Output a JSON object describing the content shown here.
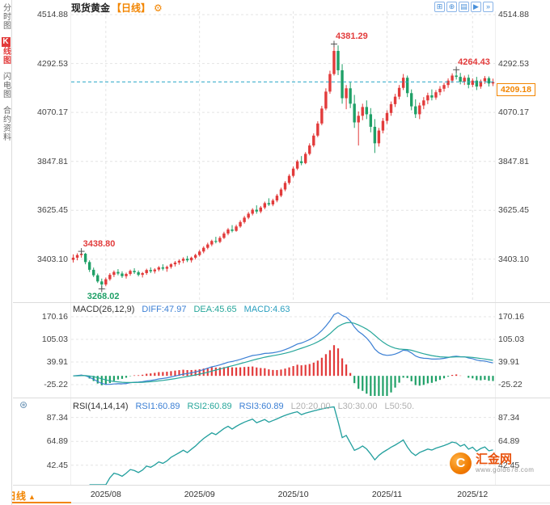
{
  "header": {
    "title": "现货黄金",
    "period_tag": "【日线】",
    "settings_icon": "⚙"
  },
  "toolbar": {
    "icons": [
      {
        "name": "pan-icon",
        "glyph": "⊞"
      },
      {
        "name": "zoom-icon",
        "glyph": "⊕"
      },
      {
        "name": "chart-style-icon",
        "glyph": "▤"
      },
      {
        "name": "play-icon",
        "glyph": "▶"
      },
      {
        "name": "fast-forward-icon",
        "glyph": "»"
      }
    ]
  },
  "sidebar": {
    "tabs": [
      {
        "id": "time-chart",
        "label": "分时图",
        "active": false
      },
      {
        "id": "kline-chart",
        "label": "K线图",
        "active": true
      },
      {
        "id": "lightning-chart",
        "label": "闪电图",
        "active": false
      },
      {
        "id": "contract-info",
        "label": "合约资料",
        "active": false
      }
    ]
  },
  "icons": {
    "indicator_settings": "⊛"
  },
  "bottom": {
    "period_label": "日线",
    "period_caret": "▲"
  },
  "watermark": {
    "brand": "汇金网",
    "url": "www.gold678.com",
    "logo_glyph": "C"
  },
  "colors": {
    "up": "#e23b3b",
    "down": "#1fa067",
    "accent_orange": "#f28500",
    "grid": "#e4e4e4",
    "axis_text": "#444444",
    "current_line": "#2aa8c8"
  },
  "chart_data": {
    "type": "candlestick",
    "title": "现货黄金 日线",
    "y_ticks": [
      4514.88,
      4292.53,
      4070.17,
      3847.81,
      3625.45,
      3403.1
    ],
    "y_range": {
      "min": 3215,
      "max": 4530
    },
    "x_ticks": [
      {
        "label": "2025/08",
        "index": 8
      },
      {
        "label": "2025/09",
        "index": 31
      },
      {
        "label": "2025/10",
        "index": 54
      },
      {
        "label": "2025/11",
        "index": 77
      },
      {
        "label": "2025/12",
        "index": 98
      }
    ],
    "current_price": 4209.18,
    "annotations": [
      {
        "index": 2,
        "price": 3438.8,
        "label": "3438.80",
        "type": "high"
      },
      {
        "index": 7,
        "price": 3268.02,
        "label": "3268.02",
        "type": "low"
      },
      {
        "index": 64,
        "price": 4381.29,
        "label": "4381.29",
        "type": "high"
      },
      {
        "index": 94,
        "price": 4264.43,
        "label": "4264.43",
        "type": "high"
      }
    ],
    "candles": [
      [
        3400,
        3425,
        3388,
        3410
      ],
      [
        3410,
        3430,
        3398,
        3422
      ],
      [
        3422,
        3438.8,
        3410,
        3428
      ],
      [
        3428,
        3432,
        3380,
        3390
      ],
      [
        3390,
        3398,
        3345,
        3355
      ],
      [
        3355,
        3365,
        3322,
        3330
      ],
      [
        3330,
        3338,
        3295,
        3302
      ],
      [
        3302,
        3315,
        3268.02,
        3288
      ],
      [
        3288,
        3320,
        3280,
        3312
      ],
      [
        3312,
        3340,
        3305,
        3332
      ],
      [
        3332,
        3352,
        3322,
        3345
      ],
      [
        3345,
        3358,
        3330,
        3338
      ],
      [
        3338,
        3348,
        3318,
        3326
      ],
      [
        3326,
        3342,
        3315,
        3336
      ],
      [
        3336,
        3356,
        3328,
        3350
      ],
      [
        3350,
        3362,
        3336,
        3344
      ],
      [
        3344,
        3352,
        3325,
        3332
      ],
      [
        3332,
        3345,
        3320,
        3340
      ],
      [
        3340,
        3360,
        3332,
        3354
      ],
      [
        3354,
        3366,
        3340,
        3348
      ],
      [
        3348,
        3362,
        3338,
        3356
      ],
      [
        3356,
        3372,
        3348,
        3366
      ],
      [
        3366,
        3380,
        3352,
        3360
      ],
      [
        3360,
        3374,
        3346,
        3368
      ],
      [
        3368,
        3385,
        3360,
        3380
      ],
      [
        3380,
        3395,
        3370,
        3388
      ],
      [
        3388,
        3402,
        3378,
        3396
      ],
      [
        3396,
        3412,
        3385,
        3405
      ],
      [
        3405,
        3418,
        3390,
        3398
      ],
      [
        3398,
        3415,
        3388,
        3410
      ],
      [
        3410,
        3428,
        3402,
        3422
      ],
      [
        3422,
        3445,
        3415,
        3438
      ],
      [
        3438,
        3462,
        3430,
        3455
      ],
      [
        3455,
        3478,
        3448,
        3470
      ],
      [
        3470,
        3492,
        3462,
        3486
      ],
      [
        3486,
        3505,
        3475,
        3482
      ],
      [
        3482,
        3508,
        3476,
        3500
      ],
      [
        3500,
        3528,
        3495,
        3520
      ],
      [
        3520,
        3545,
        3512,
        3538
      ],
      [
        3538,
        3558,
        3525,
        3532
      ],
      [
        3532,
        3560,
        3528,
        3552
      ],
      [
        3552,
        3580,
        3546,
        3572
      ],
      [
        3572,
        3600,
        3565,
        3592
      ],
      [
        3592,
        3618,
        3585,
        3610
      ],
      [
        3610,
        3635,
        3602,
        3628
      ],
      [
        3628,
        3648,
        3610,
        3620
      ],
      [
        3620,
        3645,
        3612,
        3638
      ],
      [
        3638,
        3665,
        3630,
        3658
      ],
      [
        3658,
        3680,
        3645,
        3652
      ],
      [
        3652,
        3678,
        3644,
        3670
      ],
      [
        3670,
        3700,
        3662,
        3692
      ],
      [
        3692,
        3728,
        3685,
        3720
      ],
      [
        3720,
        3758,
        3712,
        3750
      ],
      [
        3750,
        3790,
        3742,
        3782
      ],
      [
        3782,
        3825,
        3775,
        3815
      ],
      [
        3815,
        3855,
        3808,
        3848
      ],
      [
        3848,
        3872,
        3830,
        3840
      ],
      [
        3840,
        3890,
        3835,
        3882
      ],
      [
        3882,
        3930,
        3875,
        3920
      ],
      [
        3920,
        3975,
        3912,
        3965
      ],
      [
        3965,
        4030,
        3958,
        4020
      ],
      [
        4020,
        4100,
        4012,
        4088
      ],
      [
        4088,
        4180,
        4080,
        4165
      ],
      [
        4165,
        4260,
        4155,
        4245
      ],
      [
        4245,
        4381.29,
        4238,
        4350
      ],
      [
        4350,
        4375,
        4240,
        4262
      ],
      [
        4262,
        4290,
        4110,
        4135
      ],
      [
        4135,
        4195,
        4085,
        4180
      ],
      [
        4180,
        4210,
        4090,
        4110
      ],
      [
        4110,
        4150,
        4000,
        4025
      ],
      [
        4025,
        4075,
        3920,
        4055
      ],
      [
        4055,
        4110,
        4035,
        4095
      ],
      [
        4095,
        4125,
        4040,
        4062
      ],
      [
        4062,
        4090,
        3980,
        4005
      ],
      [
        4005,
        4040,
        3886,
        3930
      ],
      [
        3930,
        4000,
        3915,
        3988
      ],
      [
        3988,
        4045,
        3975,
        4032
      ],
      [
        4032,
        4080,
        4018,
        4068
      ],
      [
        4068,
        4120,
        4055,
        4108
      ],
      [
        4108,
        4155,
        4095,
        4142
      ],
      [
        4142,
        4195,
        4130,
        4182
      ],
      [
        4182,
        4245,
        4172,
        4228
      ],
      [
        4228,
        4238,
        4140,
        4158
      ],
      [
        4158,
        4175,
        4080,
        4098
      ],
      [
        4098,
        4130,
        4045,
        4062
      ],
      [
        4062,
        4115,
        4040,
        4102
      ],
      [
        4102,
        4140,
        4085,
        4125
      ],
      [
        4125,
        4160,
        4108,
        4148
      ],
      [
        4148,
        4175,
        4125,
        4138
      ],
      [
        4138,
        4172,
        4128,
        4162
      ],
      [
        4162,
        4190,
        4148,
        4178
      ],
      [
        4178,
        4205,
        4165,
        4195
      ],
      [
        4195,
        4225,
        4182,
        4215
      ],
      [
        4215,
        4248,
        4205,
        4238
      ],
      [
        4238,
        4264.43,
        4220,
        4232
      ],
      [
        4232,
        4250,
        4198,
        4210
      ],
      [
        4210,
        4238,
        4195,
        4228
      ],
      [
        4228,
        4242,
        4180,
        4196
      ],
      [
        4196,
        4225,
        4185,
        4215
      ],
      [
        4215,
        4232,
        4172,
        4188
      ],
      [
        4188,
        4220,
        4178,
        4212
      ],
      [
        4212,
        4236,
        4200,
        4226
      ],
      [
        4226,
        4234,
        4188,
        4202
      ],
      [
        4202,
        4224,
        4190,
        4209.18
      ]
    ],
    "indicators": {
      "macd": {
        "name": "MACD(26,12,9)",
        "params": {
          "fast": 12,
          "slow": 26,
          "signal": 9
        },
        "values": [
          {
            "label": "DIFF:47.97",
            "color": "#3b7fd4"
          },
          {
            "label": "DEA:45.65",
            "color": "#26a69a"
          },
          {
            "label": "MACD:4.63",
            "color": "#2a9fbf"
          }
        ],
        "y_ticks": [
          170.16,
          105.03,
          39.91,
          -25.22
        ],
        "y_range": {
          "min": -57.79,
          "max": 202.73
        }
      },
      "rsi": {
        "name": "RSI(14,14,14)",
        "period": 14,
        "values": [
          {
            "label": "RSI1:60.89",
            "color": "#3b7fd4"
          },
          {
            "label": "RSI2:60.89",
            "color": "#26a69a"
          },
          {
            "label": "RSI3:60.89",
            "color": "#3b7fd4"
          },
          {
            "label": "L20:20.00",
            "color": "#b0b0b0"
          },
          {
            "label": "L30:30.00",
            "color": "#b0b0b0"
          },
          {
            "label": "L50:50.",
            "color": "#b0b0b0"
          }
        ],
        "y_ticks": [
          87.34,
          64.89,
          42.45
        ],
        "y_range": {
          "min": 24,
          "max": 100
        }
      }
    }
  }
}
